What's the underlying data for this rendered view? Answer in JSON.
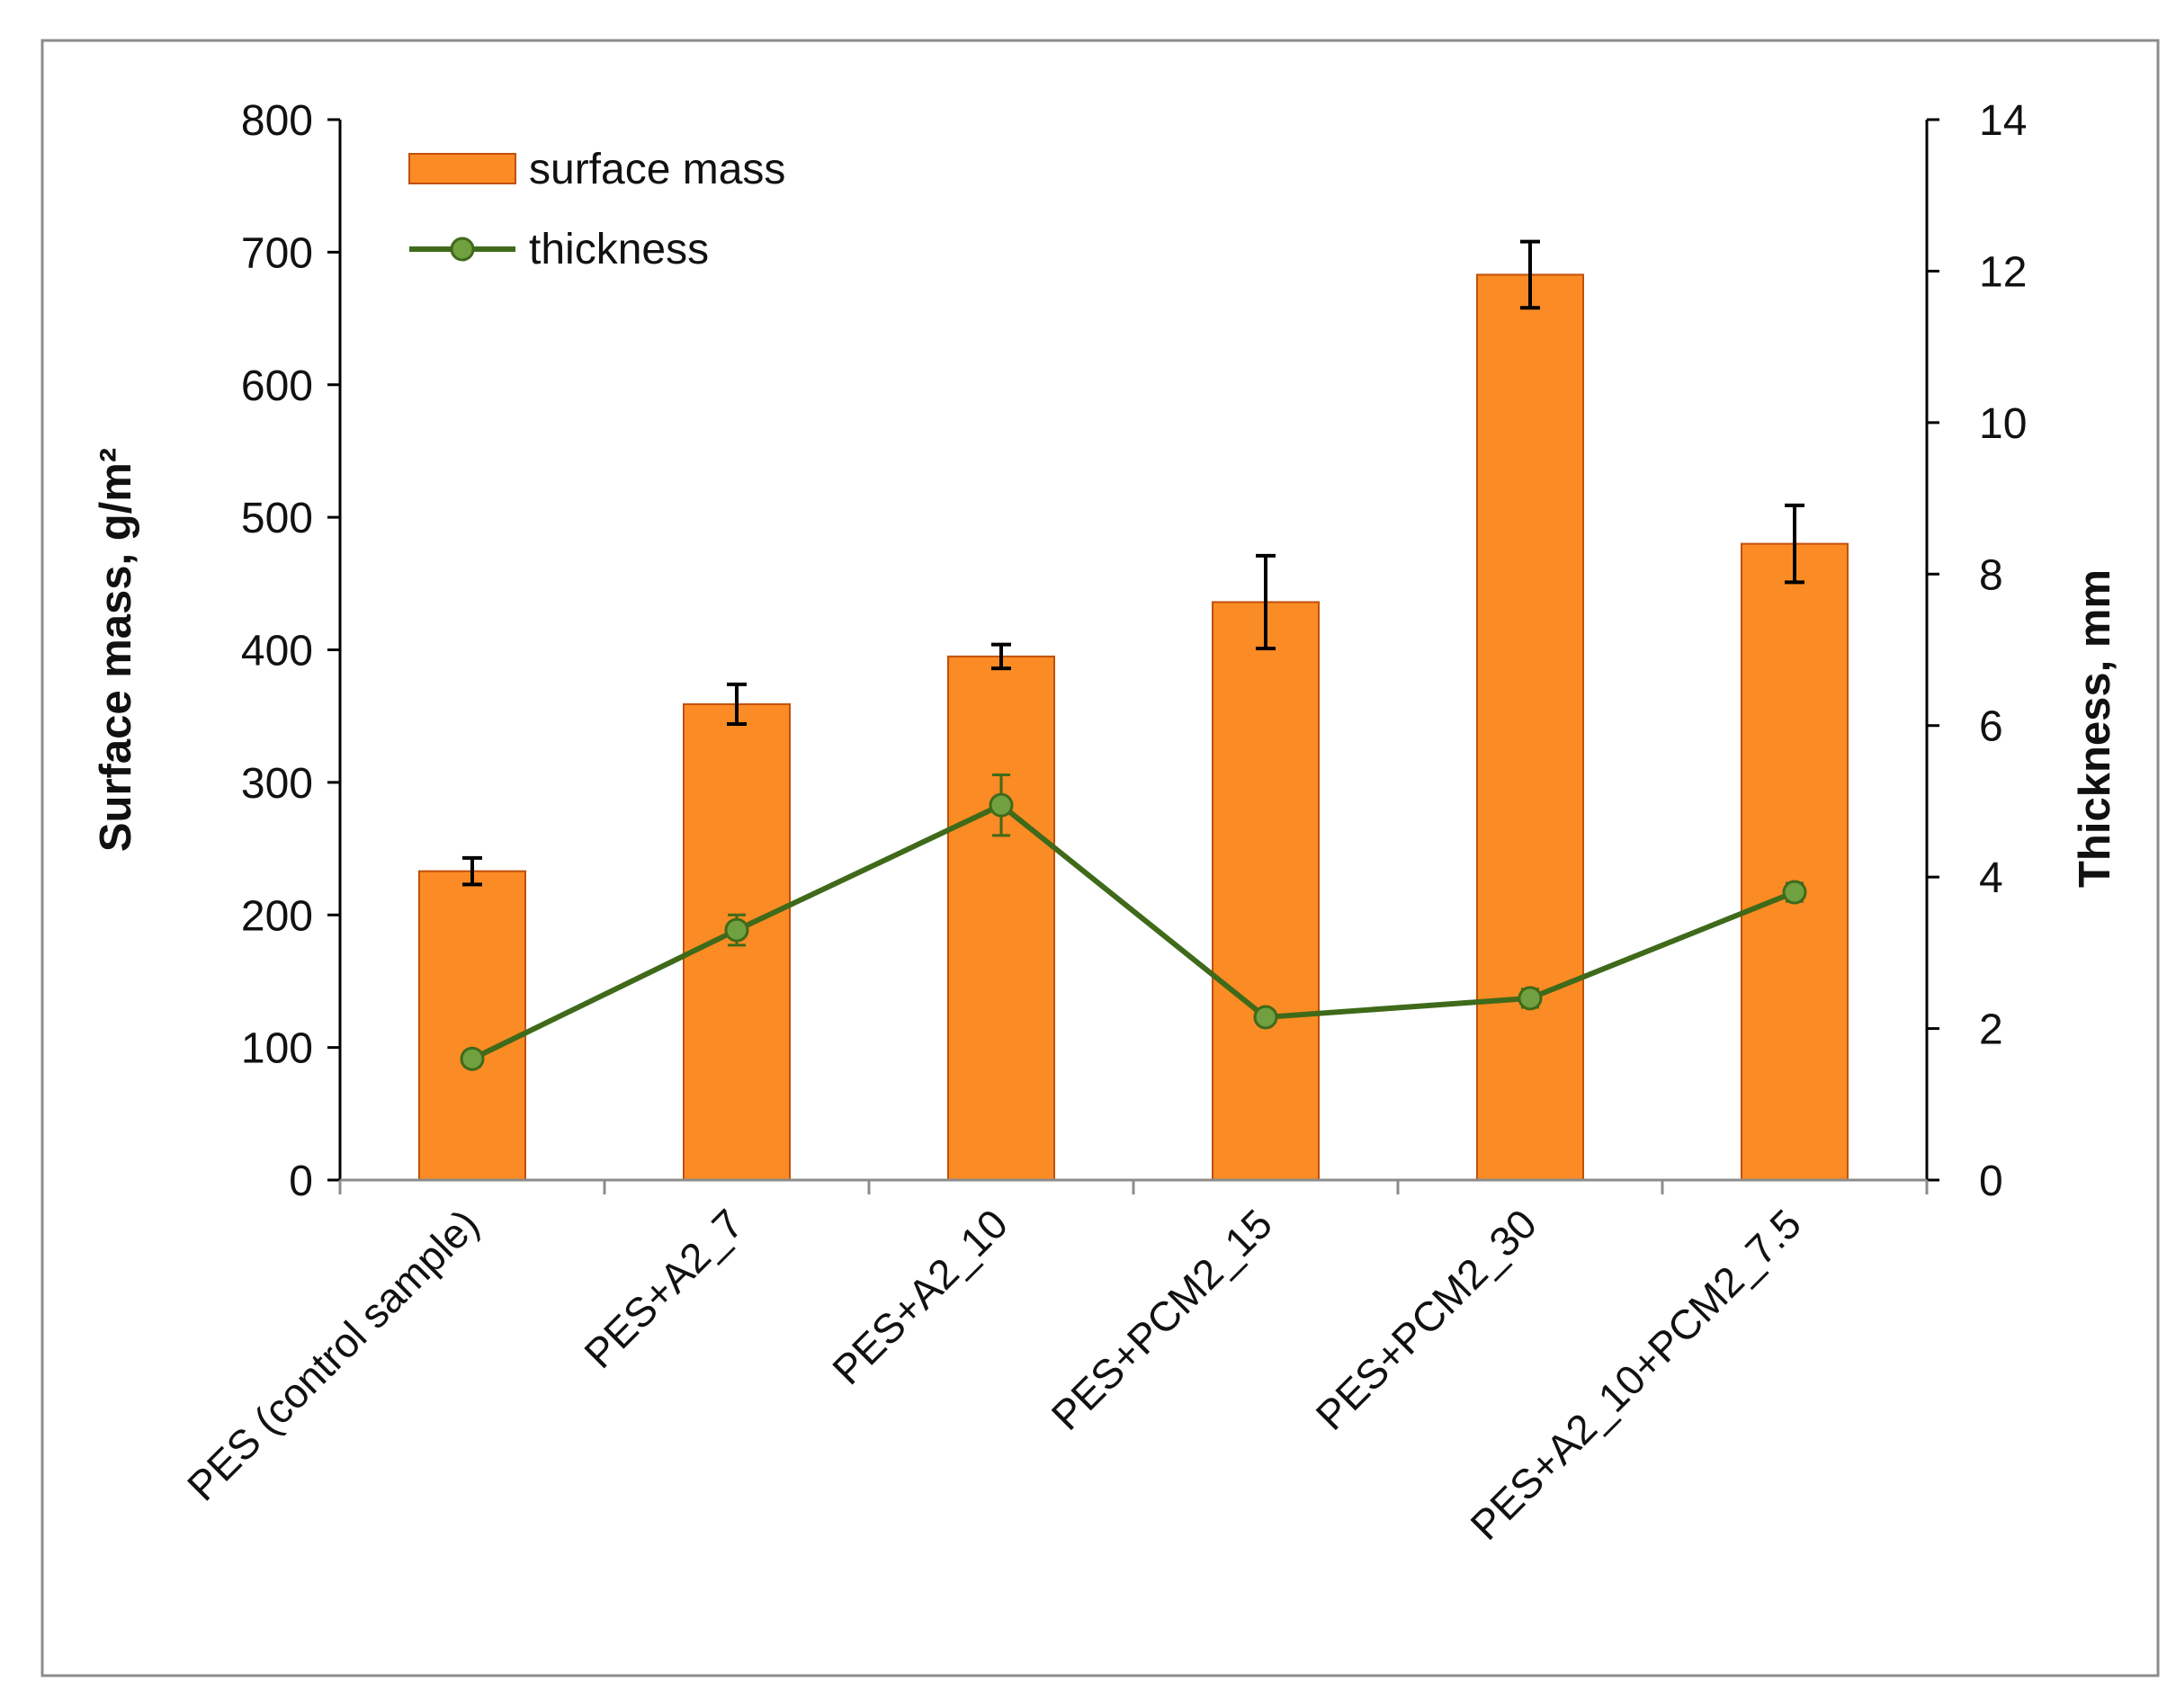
{
  "chart_data": {
    "type": "bar",
    "categories": [
      "PES (control sample)",
      "PES+A2_7",
      "PES+A2_10",
      "PES+PCM2_15",
      "PES+PCM2_30",
      "PES+A2_10+PCM2_7.5"
    ],
    "series": [
      {
        "name": "surface mass",
        "type": "bar",
        "axis": "left",
        "values": [
          233,
          359,
          395,
          436,
          683,
          480
        ],
        "error": [
          10,
          15,
          9,
          35,
          25,
          29
        ],
        "color": "#fb8b24",
        "edge_color": "#c0500a"
      },
      {
        "name": "thickness",
        "type": "line",
        "axis": "right",
        "values": [
          1.6,
          3.3,
          4.95,
          2.15,
          2.4,
          3.8
        ],
        "error": [
          0.1,
          0.2,
          0.4,
          0.05,
          0.12,
          0.12
        ],
        "color": "#3f6a1a",
        "marker_color": "#70a040"
      }
    ],
    "y_left": {
      "label": "Surface mass, g/m²",
      "ylim": [
        0,
        800
      ],
      "ticks": [
        "0",
        "100",
        "200",
        "300",
        "400",
        "500",
        "600",
        "700",
        "800"
      ]
    },
    "y_right": {
      "label": "Thickness, mm",
      "ylim": [
        0,
        14
      ],
      "ticks": [
        "0",
        "2",
        "4",
        "6",
        "8",
        "10",
        "12",
        "14"
      ]
    },
    "legend": {
      "position": "top-left",
      "entries": [
        "surface mass",
        "thickness"
      ]
    },
    "grid": false
  }
}
